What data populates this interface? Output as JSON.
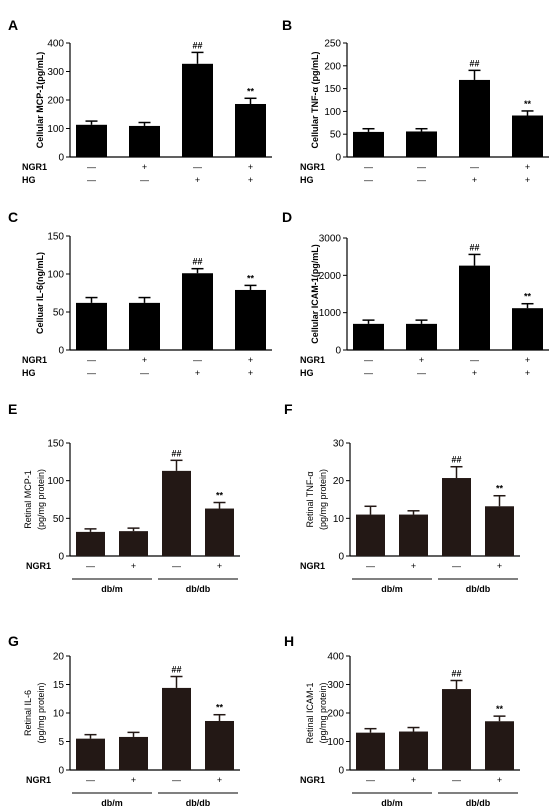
{
  "panels": [
    {
      "letter": "A",
      "type": "bar",
      "ylabel": "Cellular MCP-1(pg/mL)",
      "ylim": [
        0,
        400
      ],
      "yticks": [
        0,
        100,
        200,
        300,
        400
      ],
      "rows": [
        {
          "label": "NGR1",
          "values": [
            "—",
            "+",
            "—",
            "+"
          ]
        },
        {
          "label": "HG",
          "values": [
            "—",
            "—",
            "+",
            "+"
          ]
        }
      ],
      "groups": [],
      "values": [
        113,
        109,
        327,
        186
      ],
      "errors": [
        13,
        12,
        40,
        20
      ],
      "annotations": [
        "",
        "",
        "##",
        "**"
      ]
    },
    {
      "letter": "B",
      "type": "bar",
      "ylabel": "Cellular TNF-α (pg/mL)",
      "ylim": [
        0,
        250
      ],
      "yticks": [
        0,
        50,
        100,
        150,
        200,
        250
      ],
      "rows": [
        {
          "label": "NGR1",
          "values": [
            "—",
            "—",
            "—",
            "+"
          ]
        },
        {
          "label": "HG",
          "values": [
            "—",
            "—",
            "+",
            "+"
          ]
        }
      ],
      "groups": [],
      "values": [
        55,
        56,
        169,
        91
      ],
      "errors": [
        7,
        6,
        21,
        10
      ],
      "annotations": [
        "",
        "",
        "##",
        "**"
      ]
    },
    {
      "letter": "C",
      "type": "bar",
      "ylabel": "Celluar IL-6(ng/mL)",
      "ylim": [
        0,
        150
      ],
      "yticks": [
        0,
        50,
        100,
        150
      ],
      "rows": [
        {
          "label": "NGR1",
          "values": [
            "—",
            "+",
            "—",
            "+"
          ]
        },
        {
          "label": "HG",
          "values": [
            "—",
            "—",
            "+",
            "+"
          ]
        }
      ],
      "groups": [],
      "values": [
        62,
        62,
        101,
        79
      ],
      "errors": [
        7,
        7,
        6,
        6
      ],
      "annotations": [
        "",
        "",
        "##",
        "**"
      ]
    },
    {
      "letter": "D",
      "type": "bar",
      "ylabel": "Cellular ICAM-1(pg/mL)",
      "ylim": [
        0,
        3000
      ],
      "yticks": [
        0,
        1000,
        2000,
        3000
      ],
      "rows": [
        {
          "label": "NGR1",
          "values": [
            "—",
            "+",
            "—",
            "+"
          ]
        },
        {
          "label": "HG",
          "values": [
            "—",
            "—",
            "+",
            "+"
          ]
        }
      ],
      "groups": [],
      "values": [
        700,
        700,
        2260,
        1120
      ],
      "errors": [
        100,
        100,
        300,
        120
      ],
      "annotations": [
        "",
        "",
        "##",
        "**"
      ]
    },
    {
      "letter": "E",
      "type": "bar",
      "ylabel": "Retinal MCP-1",
      "ylabel2": "(pg/mg protein)",
      "ylim": [
        0,
        150
      ],
      "yticks": [
        0,
        50,
        100,
        150
      ],
      "rows": [
        {
          "label": "NGR1",
          "values": [
            "—",
            "+",
            "—",
            "+"
          ]
        }
      ],
      "groups": [
        "db/m",
        "db/db"
      ],
      "values": [
        32,
        33,
        113,
        63
      ],
      "errors": [
        4,
        4,
        14,
        8
      ],
      "annotations": [
        "",
        "",
        "##",
        "**"
      ]
    },
    {
      "letter": "F",
      "type": "bar",
      "ylabel": "Retinal TNF-α",
      "ylabel2": "(pg/mg protein)",
      "ylim": [
        0,
        30
      ],
      "yticks": [
        0,
        10,
        20,
        30
      ],
      "rows": [
        {
          "label": "NGR1",
          "values": [
            "—",
            "+",
            "—",
            "+"
          ]
        }
      ],
      "groups": [
        "db/m",
        "db/db"
      ],
      "values": [
        11,
        11,
        20.7,
        13.2
      ],
      "errors": [
        2.2,
        1.0,
        3.0,
        2.8
      ],
      "annotations": [
        "",
        "",
        "##",
        "**"
      ]
    },
    {
      "letter": "G",
      "type": "bar",
      "ylabel": "Retinal IL-6",
      "ylabel2": "(pg/mg protein)",
      "ylim": [
        0,
        20
      ],
      "yticks": [
        0,
        5,
        10,
        15,
        20
      ],
      "rows": [
        {
          "label": "NGR1",
          "values": [
            "—",
            "+",
            "—",
            "+"
          ]
        }
      ],
      "groups": [
        "db/m",
        "db/db"
      ],
      "values": [
        5.5,
        5.8,
        14.4,
        8.6
      ],
      "errors": [
        0.7,
        0.8,
        2.0,
        1.1
      ],
      "annotations": [
        "",
        "",
        "##",
        "**"
      ]
    },
    {
      "letter": "H",
      "type": "bar",
      "ylabel": "Retinal ICAM-1",
      "ylabel2": "(pg/mg protein)",
      "ylim": [
        0,
        400
      ],
      "yticks": [
        0,
        100,
        200,
        300,
        400
      ],
      "rows": [
        {
          "label": "NGR1",
          "values": [
            "—",
            "+",
            "—",
            "+"
          ]
        }
      ],
      "groups": [
        "db/m",
        "db/db"
      ],
      "values": [
        131,
        135,
        284,
        171
      ],
      "errors": [
        14,
        14,
        30,
        18
      ],
      "annotations": [
        "",
        "",
        "##",
        "**"
      ]
    }
  ],
  "colors": {
    "bar_dark": "#000000",
    "bar_brown": "#231815",
    "axis": "#000000"
  }
}
